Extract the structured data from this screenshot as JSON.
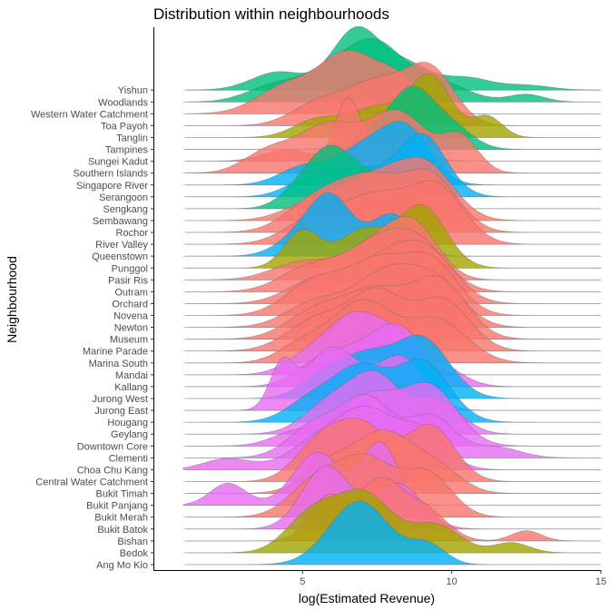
{
  "chart_data": {
    "type": "ridgeline",
    "title": "Distribution within neighbourhoods",
    "xlabel": "log(Estimated Revenue)",
    "ylabel": "Neighbourhood",
    "xlim": [
      0,
      15
    ],
    "xticks": [
      5,
      10,
      15
    ],
    "data_range": [
      1,
      15
    ],
    "grid": false,
    "legend": "none",
    "colors": {
      "red": "#F8766D",
      "olive": "#A3A500",
      "green": "#00BF7D",
      "blue": "#00B0F6",
      "magenta": "#E76BF3"
    },
    "series": [
      {
        "name": "Ang Mo Kio",
        "color": "blue",
        "peaks": [
          [
            6.9,
            1.0,
            1.0
          ],
          [
            9.2,
            0.3,
            0.6
          ]
        ]
      },
      {
        "name": "Bedok",
        "color": "olive",
        "peaks": [
          [
            5.2,
            0.5,
            0.8
          ],
          [
            7.0,
            0.9,
            1.0
          ],
          [
            9.5,
            0.4,
            0.8
          ],
          [
            12.0,
            0.15,
            0.6
          ]
        ]
      },
      {
        "name": "Bishan",
        "color": "red",
        "peaks": [
          [
            5.8,
            0.6,
            0.6
          ],
          [
            7.6,
            0.9,
            0.8
          ],
          [
            9.2,
            0.4,
            0.7
          ],
          [
            12.5,
            0.15,
            0.5
          ]
        ]
      },
      {
        "name": "Bukit Batok",
        "color": "magenta",
        "peaks": [
          [
            5.8,
            0.7,
            0.8
          ],
          [
            8.2,
            0.5,
            0.8
          ]
        ]
      },
      {
        "name": "Bukit Merah",
        "color": "red",
        "peaks": [
          [
            5.5,
            0.6,
            0.9
          ],
          [
            7.2,
            0.9,
            0.9
          ],
          [
            9.2,
            0.7,
            0.8
          ]
        ]
      },
      {
        "name": "Bukit Panjang",
        "color": "magenta",
        "peaks": [
          [
            2.5,
            0.25,
            0.6
          ],
          [
            5.5,
            0.6,
            0.8
          ],
          [
            7.6,
            0.7,
            0.6
          ]
        ]
      },
      {
        "name": "Bukit Timah",
        "color": "red",
        "peaks": [
          [
            6.0,
            0.5,
            0.9
          ],
          [
            7.8,
            0.9,
            0.9
          ],
          [
            9.5,
            0.4,
            0.8
          ]
        ]
      },
      {
        "name": "Central Water Catchment",
        "color": "red",
        "peaks": [
          [
            5.5,
            0.5,
            0.8
          ],
          [
            7.0,
            0.8,
            0.9
          ],
          [
            9.3,
            0.8,
            0.8
          ]
        ]
      },
      {
        "name": "Choa Chu Kang",
        "color": "magenta",
        "peaks": [
          [
            2.5,
            0.15,
            0.8
          ],
          [
            5.6,
            0.4,
            1.0
          ],
          [
            7.2,
            0.7,
            0.9
          ],
          [
            9.0,
            0.5,
            0.8
          ]
        ]
      },
      {
        "name": "Clementi",
        "color": "magenta",
        "peaks": [
          [
            5.5,
            0.5,
            0.9
          ],
          [
            7.2,
            0.8,
            0.8
          ],
          [
            9.3,
            0.6,
            0.8
          ],
          [
            11.5,
            0.15,
            0.8
          ]
        ]
      },
      {
        "name": "Downtown Core",
        "color": "magenta",
        "peaks": [
          [
            4.8,
            0.2,
            0.8
          ],
          [
            7.2,
            0.7,
            1.0
          ],
          [
            9.3,
            0.8,
            0.9
          ]
        ]
      },
      {
        "name": "Geylang",
        "color": "magenta",
        "peaks": [
          [
            6.0,
            0.5,
            0.9
          ],
          [
            7.5,
            0.8,
            0.8
          ],
          [
            9.5,
            0.5,
            0.8
          ]
        ]
      },
      {
        "name": "Hougang",
        "color": "blue",
        "peaks": [
          [
            5.5,
            0.4,
            0.9
          ],
          [
            7.0,
            0.7,
            0.8
          ],
          [
            9.0,
            0.9,
            0.9
          ]
        ]
      },
      {
        "name": "Jurong East",
        "color": "magenta",
        "peaks": [
          [
            4.3,
            0.4,
            0.4
          ],
          [
            6.0,
            0.6,
            0.9
          ],
          [
            8.3,
            0.5,
            0.8
          ]
        ]
      },
      {
        "name": "Jurong West",
        "color": "blue",
        "peaks": [
          [
            5.8,
            0.4,
            0.8
          ],
          [
            7.2,
            0.6,
            0.8
          ],
          [
            9.0,
            1.0,
            0.9
          ]
        ]
      },
      {
        "name": "Kallang",
        "color": "magenta",
        "peaks": [
          [
            5.5,
            0.5,
            0.8
          ],
          [
            7.0,
            0.8,
            0.9
          ],
          [
            8.2,
            1.0,
            0.7
          ],
          [
            9.5,
            0.5,
            0.8
          ]
        ]
      },
      {
        "name": "Mandai",
        "color": "magenta",
        "peaks": [
          [
            5.2,
            0.3,
            0.8
          ],
          [
            6.8,
            1.0,
            0.9
          ],
          [
            8.3,
            0.5,
            0.7
          ]
        ]
      },
      {
        "name": "Marina South",
        "color": "red",
        "peaks": [
          [
            5.0,
            0.3,
            0.8
          ],
          [
            7.0,
            1.0,
            1.0
          ],
          [
            9.5,
            0.7,
            1.0
          ]
        ]
      },
      {
        "name": "Marine Parade",
        "color": "red",
        "peaks": [
          [
            5.5,
            0.5,
            1.0
          ],
          [
            7.5,
            0.9,
            0.9
          ],
          [
            9.7,
            0.8,
            0.9
          ]
        ]
      },
      {
        "name": "Museum",
        "color": "red",
        "peaks": [
          [
            5.5,
            0.5,
            1.0
          ],
          [
            7.5,
            0.8,
            1.0
          ],
          [
            9.6,
            1.0,
            0.9
          ]
        ]
      },
      {
        "name": "Newton",
        "color": "red",
        "peaks": [
          [
            5.5,
            0.5,
            1.0
          ],
          [
            7.8,
            1.0,
            1.0
          ],
          [
            9.5,
            0.8,
            0.9
          ]
        ]
      },
      {
        "name": "Novena",
        "color": "red",
        "peaks": [
          [
            5.5,
            0.6,
            1.0
          ],
          [
            7.5,
            0.8,
            0.9
          ],
          [
            9.3,
            0.9,
            0.9
          ]
        ]
      },
      {
        "name": "Orchard",
        "color": "red",
        "peaks": [
          [
            5.5,
            0.5,
            1.0
          ],
          [
            7.8,
            0.9,
            1.0
          ],
          [
            9.3,
            0.9,
            0.9
          ]
        ]
      },
      {
        "name": "Outram",
        "color": "red",
        "peaks": [
          [
            5.3,
            0.5,
            1.0
          ],
          [
            7.5,
            0.9,
            1.0
          ],
          [
            9.0,
            0.8,
            0.9
          ]
        ]
      },
      {
        "name": "Pasir Ris",
        "color": "red",
        "peaks": [
          [
            5.0,
            0.4,
            1.0
          ],
          [
            7.5,
            0.8,
            1.0
          ],
          [
            8.8,
            1.0,
            0.8
          ]
        ]
      },
      {
        "name": "Punggol",
        "color": "olive",
        "peaks": [
          [
            5.0,
            0.6,
            0.6
          ],
          [
            7.0,
            0.6,
            0.8
          ],
          [
            9.0,
            1.0,
            0.8
          ]
        ]
      },
      {
        "name": "Queenstown",
        "color": "blue",
        "peaks": [
          [
            5.0,
            0.4,
            0.8
          ],
          [
            6.0,
            1.0,
            0.7
          ],
          [
            8.0,
            0.8,
            0.7
          ]
        ]
      },
      {
        "name": "River Valley",
        "color": "red",
        "peaks": [
          [
            5.5,
            0.5,
            1.0
          ],
          [
            7.5,
            0.8,
            1.0
          ],
          [
            9.5,
            1.0,
            0.9
          ]
        ]
      },
      {
        "name": "Rochor",
        "color": "red",
        "peaks": [
          [
            5.5,
            0.6,
            1.0
          ],
          [
            7.3,
            0.9,
            1.0
          ],
          [
            9.3,
            1.0,
            0.9
          ]
        ]
      },
      {
        "name": "Sembawang",
        "color": "red",
        "peaks": [
          [
            5.5,
            0.4,
            1.0
          ],
          [
            7.5,
            0.8,
            1.0
          ],
          [
            9.2,
            1.0,
            0.9
          ]
        ]
      },
      {
        "name": "Sengkang",
        "color": "green",
        "peaks": [
          [
            5.0,
            0.4,
            0.7
          ],
          [
            6.0,
            1.0,
            0.7
          ],
          [
            7.5,
            0.6,
            0.8
          ]
        ]
      },
      {
        "name": "Serangoon",
        "color": "blue",
        "peaks": [
          [
            5.3,
            0.3,
            0.8
          ],
          [
            7.0,
            0.4,
            0.8
          ],
          [
            9.0,
            1.0,
            0.8
          ]
        ]
      },
      {
        "name": "Singapore River",
        "color": "blue",
        "peaks": [
          [
            5.0,
            0.3,
            0.8
          ],
          [
            7.0,
            0.6,
            0.9
          ],
          [
            8.5,
            0.9,
            0.8
          ]
        ]
      },
      {
        "name": "Southern Islands",
        "color": "red",
        "peaks": [
          [
            3.8,
            0.3,
            0.8
          ],
          [
            5.8,
            0.7,
            1.0
          ],
          [
            8.2,
            0.9,
            1.0
          ],
          [
            10.3,
            0.5,
            0.6
          ]
        ]
      },
      {
        "name": "Sungei Kadut",
        "color": "red",
        "peaks": [
          [
            4.5,
            0.2,
            0.8
          ],
          [
            6.5,
            1.0,
            0.4
          ],
          [
            8.0,
            0.5,
            0.8
          ]
        ]
      },
      {
        "name": "Tampines",
        "color": "green",
        "peaks": [
          [
            7.5,
            0.3,
            0.8
          ],
          [
            8.7,
            1.0,
            0.7
          ],
          [
            10.0,
            0.4,
            0.7
          ]
        ]
      },
      {
        "name": "Tanglin",
        "color": "olive",
        "peaks": [
          [
            5.5,
            0.3,
            0.8
          ],
          [
            7.5,
            0.5,
            0.9
          ],
          [
            9.3,
            1.0,
            0.7
          ],
          [
            11.2,
            0.35,
            0.5
          ]
        ]
      },
      {
        "name": "Toa Payoh",
        "color": "red",
        "peaks": [
          [
            5.5,
            0.4,
            0.9
          ],
          [
            7.5,
            0.8,
            1.0
          ],
          [
            9.3,
            1.0,
            0.8
          ]
        ]
      },
      {
        "name": "Western Water Catchment",
        "color": "red",
        "peaks": [
          [
            4.5,
            0.5,
            1.0
          ],
          [
            6.5,
            1.0,
            0.9
          ],
          [
            8.2,
            0.6,
            0.8
          ]
        ]
      },
      {
        "name": "Woodlands",
        "color": "green",
        "peaks": [
          [
            4.0,
            0.3,
            0.9
          ],
          [
            6.0,
            0.6,
            1.0
          ],
          [
            7.5,
            1.0,
            0.9
          ],
          [
            9.5,
            0.4,
            1.0
          ],
          [
            12.5,
            0.15,
            0.6
          ]
        ]
      },
      {
        "name": "Yishun",
        "color": "green",
        "peaks": [
          [
            4.2,
            0.3,
            0.9
          ],
          [
            6.8,
            1.0,
            0.8
          ],
          [
            8.5,
            0.4,
            0.8
          ],
          [
            10.5,
            0.2,
            0.8
          ],
          [
            12.5,
            0.08,
            0.8
          ]
        ]
      }
    ]
  }
}
